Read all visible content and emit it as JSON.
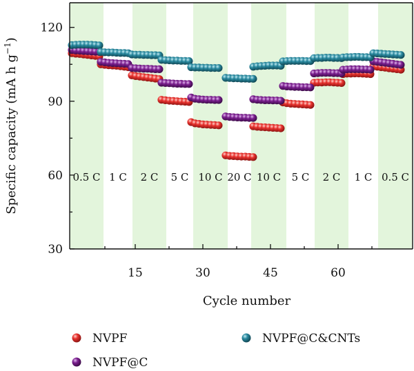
{
  "chart_data": {
    "type": "scatter",
    "xlabel": "Cycle number",
    "ylabel": "Specific capacity (mA h g",
    "ylabel_sup": "−1",
    "ylabel_close": ")",
    "xlim": [
      0,
      70
    ],
    "ylim": [
      30,
      130
    ],
    "xticks": [
      15,
      30,
      45,
      60
    ],
    "yticks": [
      30,
      60,
      90,
      120
    ],
    "background_color": "#e3f5dc",
    "rate_segments": [
      {
        "label": "0.5 C",
        "start": 1,
        "end": 7,
        "shaded": true
      },
      {
        "label": "1 C",
        "start": 8,
        "end": 14,
        "shaded": false
      },
      {
        "label": "2 C",
        "start": 15,
        "end": 21,
        "shaded": true
      },
      {
        "label": "5 C",
        "start": 22,
        "end": 28,
        "shaded": false
      },
      {
        "label": "10 C",
        "start": 29,
        "end": 35,
        "shaded": true
      },
      {
        "label": "20 C",
        "start": 36,
        "end": 42,
        "shaded": false
      },
      {
        "label": "10 C",
        "start": 43,
        "end": 49,
        "shaded": true
      },
      {
        "label": "5 C",
        "start": 50,
        "end": 56,
        "shaded": false
      },
      {
        "label": "2 C",
        "start": 57,
        "end": 63,
        "shaded": true
      },
      {
        "label": "1 C",
        "start": 64,
        "end": 70,
        "shaded": false
      },
      {
        "label": "0.5 C",
        "start": 71,
        "end": 77,
        "shaded": true
      }
    ],
    "series": [
      {
        "name": "NVPF",
        "color": "#e8322e",
        "segments": [
          {
            "start": 1,
            "count": 8,
            "values": [
              109.5,
              109.3,
              109.2,
              109.0,
              108.8,
              108.6,
              108.4,
              108.2
            ]
          },
          {
            "start": 9,
            "count": 8,
            "values": [
              105.0,
              104.8,
              104.6,
              104.5,
              104.4,
              104.2,
              104.0,
              103.8
            ]
          },
          {
            "start": 17,
            "count": 8,
            "values": [
              100.5,
              100.2,
              100.0,
              99.8,
              99.6,
              99.4,
              99.2,
              99.0
            ]
          },
          {
            "start": 25,
            "count": 8,
            "values": [
              90.6,
              90.4,
              90.2,
              90.1,
              90.0,
              89.9,
              89.8,
              89.7
            ]
          },
          {
            "start": 33,
            "count": 8,
            "values": [
              81.5,
              81.0,
              80.8,
              80.6,
              80.5,
              80.4,
              80.3,
              80.2
            ]
          },
          {
            "start": 41,
            "count": 8,
            "values": [
              68.0,
              67.8,
              67.7,
              67.6,
              67.5,
              67.5,
              67.4,
              67.3
            ]
          },
          {
            "start": 49,
            "count": 8,
            "values": [
              79.8,
              79.6,
              79.5,
              79.4,
              79.3,
              79.2,
              79.1,
              79.0
            ]
          },
          {
            "start": 57,
            "count": 8,
            "values": [
              89.5,
              89.2,
              89.0,
              88.9,
              88.8,
              88.7,
              88.6,
              88.5
            ]
          },
          {
            "start": 65,
            "count": 8,
            "values": [
              97.5,
              97.6,
              97.6,
              97.7,
              97.7,
              97.6,
              97.5,
              97.4
            ]
          },
          {
            "start": 73,
            "count": 8,
            "values": [
              101.0,
              101.2,
              101.2,
              101.3,
              101.3,
              101.2,
              101.1,
              101.0
            ]
          },
          {
            "start": 81,
            "count": 8,
            "values": [
              104.2,
              104.0,
              103.8,
              103.6,
              103.4,
              103.2,
              103.0,
              102.8
            ]
          }
        ]
      },
      {
        "name": "NVPF@C",
        "color": "#7b1f8f",
        "segments": [
          {
            "start": 1,
            "count": 8,
            "values": [
              110.8,
              110.6,
              110.5,
              110.4,
              110.3,
              110.2,
              110.1,
              110.0
            ]
          },
          {
            "start": 9,
            "count": 8,
            "values": [
              106.0,
              105.8,
              105.6,
              105.5,
              105.4,
              105.3,
              105.2,
              105.1
            ]
          },
          {
            "start": 17,
            "count": 8,
            "values": [
              103.5,
              103.4,
              103.3,
              103.2,
              103.2,
              103.1,
              103.0,
              103.0
            ]
          },
          {
            "start": 25,
            "count": 8,
            "values": [
              97.5,
              97.4,
              97.3,
              97.2,
              97.1,
              97.1,
              97.0,
              97.0
            ]
          },
          {
            "start": 33,
            "count": 8,
            "values": [
              91.5,
              91.0,
              90.8,
              90.7,
              90.6,
              90.6,
              90.5,
              90.5
            ]
          },
          {
            "start": 41,
            "count": 8,
            "values": [
              83.8,
              83.6,
              83.5,
              83.4,
              83.3,
              83.3,
              83.2,
              83.2
            ]
          },
          {
            "start": 49,
            "count": 8,
            "values": [
              90.8,
              90.6,
              90.5,
              90.4,
              90.4,
              90.3,
              90.3,
              90.2
            ]
          },
          {
            "start": 57,
            "count": 8,
            "values": [
              96.2,
              96.0,
              95.9,
              95.8,
              95.8,
              95.7,
              95.7,
              95.6
            ]
          },
          {
            "start": 65,
            "count": 8,
            "values": [
              101.3,
              101.4,
              101.5,
              101.5,
              101.5,
              101.4,
              101.4,
              101.3
            ]
          },
          {
            "start": 73,
            "count": 8,
            "values": [
              102.8,
              102.9,
              103.0,
              103.0,
              103.0,
              102.9,
              102.9,
              102.8
            ]
          },
          {
            "start": 81,
            "count": 8,
            "values": [
              106.2,
              106.0,
              105.8,
              105.6,
              105.4,
              105.2,
              105.0,
              104.8
            ]
          }
        ]
      },
      {
        "name": "NVPF@C&CNTs",
        "color": "#2a8aa0",
        "segments": [
          {
            "start": 1,
            "count": 8,
            "values": [
              112.8,
              112.9,
              113.0,
              113.0,
              113.0,
              112.9,
              112.8,
              112.7
            ]
          },
          {
            "start": 9,
            "count": 8,
            "values": [
              110.0,
              109.9,
              109.8,
              109.8,
              109.7,
              109.6,
              109.6,
              109.5
            ]
          },
          {
            "start": 17,
            "count": 8,
            "values": [
              109.0,
              108.9,
              108.9,
              108.8,
              108.8,
              108.7,
              108.7,
              108.6
            ]
          },
          {
            "start": 25,
            "count": 8,
            "values": [
              106.8,
              106.7,
              106.6,
              106.5,
              106.5,
              106.4,
              106.4,
              106.3
            ]
          },
          {
            "start": 33,
            "count": 8,
            "values": [
              103.8,
              103.7,
              103.7,
              103.6,
              103.6,
              103.5,
              103.5,
              103.5
            ]
          },
          {
            "start": 41,
            "count": 8,
            "values": [
              99.5,
              99.4,
              99.3,
              99.3,
              99.2,
              99.2,
              99.1,
              99.1
            ]
          },
          {
            "start": 49,
            "count": 8,
            "values": [
              104.0,
              104.2,
              104.3,
              104.4,
              104.5,
              104.5,
              104.5,
              104.4
            ]
          },
          {
            "start": 57,
            "count": 8,
            "values": [
              106.2,
              106.3,
              106.4,
              106.4,
              106.4,
              106.4,
              106.3,
              106.3
            ]
          },
          {
            "start": 65,
            "count": 8,
            "values": [
              107.5,
              107.6,
              107.6,
              107.7,
              107.7,
              107.6,
              107.6,
              107.5
            ]
          },
          {
            "start": 73,
            "count": 8,
            "values": [
              107.8,
              107.9,
              107.9,
              108.0,
              108.0,
              107.9,
              107.9,
              107.8
            ]
          },
          {
            "start": 81,
            "count": 8,
            "values": [
              109.5,
              109.4,
              109.3,
              109.2,
              109.1,
              109.0,
              108.9,
              108.8
            ]
          }
        ]
      }
    ],
    "legend": {
      "placement": "bottom"
    }
  }
}
